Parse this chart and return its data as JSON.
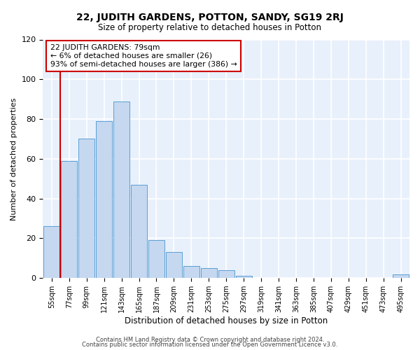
{
  "title_main": "22, JUDITH GARDENS, POTTON, SANDY, SG19 2RJ",
  "title_sub": "Size of property relative to detached houses in Potton",
  "xlabel": "Distribution of detached houses by size in Potton",
  "ylabel": "Number of detached properties",
  "bar_labels": [
    "55sqm",
    "77sqm",
    "99sqm",
    "121sqm",
    "143sqm",
    "165sqm",
    "187sqm",
    "209sqm",
    "231sqm",
    "253sqm",
    "275sqm",
    "297sqm",
    "319sqm",
    "341sqm",
    "363sqm",
    "385sqm",
    "407sqm",
    "429sqm",
    "451sqm",
    "473sqm",
    "495sqm"
  ],
  "bar_values": [
    26,
    59,
    70,
    79,
    89,
    47,
    19,
    13,
    6,
    5,
    4,
    1,
    0,
    0,
    0,
    0,
    0,
    0,
    0,
    0,
    2
  ],
  "bar_color": "#c5d8f0",
  "bar_edge_color": "#5a9fd4",
  "bg_color": "#e8f0fb",
  "grid_color": "#ffffff",
  "vline_color": "#cc0000",
  "annotation_text": "22 JUDITH GARDENS: 79sqm\n← 6% of detached houses are smaller (26)\n93% of semi-detached houses are larger (386) →",
  "annotation_box_color": "#ffffff",
  "annotation_box_edge": "#cc0000",
  "ylim": [
    0,
    120
  ],
  "yticks": [
    0,
    20,
    40,
    60,
    80,
    100,
    120
  ],
  "footer1": "Contains HM Land Registry data © Crown copyright and database right 2024.",
  "footer2": "Contains public sector information licensed under the Open Government Licence v3.0."
}
